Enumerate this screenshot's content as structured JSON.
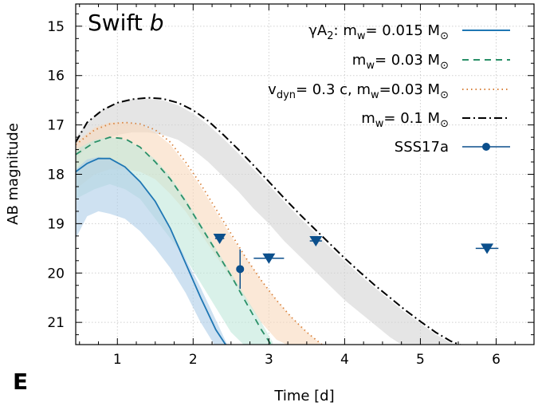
{
  "panel_label": "E",
  "chart_data": {
    "type": "line",
    "title": "Swift",
    "title_italic": "b",
    "xlabel": "Time [d]",
    "ylabel": "AB magnitude",
    "xlim": [
      0.45,
      6.5
    ],
    "ylim": [
      21.45,
      14.55
    ],
    "y_inverted": true,
    "xticks": [
      1,
      2,
      3,
      4,
      5,
      6
    ],
    "yticks": [
      15,
      16,
      17,
      18,
      19,
      20,
      21
    ],
    "grid": true,
    "legend_position": "top-right",
    "series": [
      {
        "name": "yA2: mw= 0.015 M⊙",
        "legend_label": "γA₂: m_w= 0.015 M_⊙",
        "style": "solid",
        "color": "#1f77b4",
        "band_color": "#aecde8",
        "x": [
          0.45,
          0.6,
          0.75,
          0.9,
          1.1,
          1.3,
          1.5,
          1.7,
          1.9,
          2.1,
          2.3,
          2.45
        ],
        "y": [
          17.95,
          17.78,
          17.68,
          17.68,
          17.85,
          18.15,
          18.55,
          19.1,
          19.8,
          20.5,
          21.15,
          21.5
        ],
        "band_upper": [
          17.9,
          17.7,
          17.65,
          17.7,
          17.85,
          18.15,
          18.55,
          19.1,
          19.7,
          20.3,
          20.95,
          21.45
        ],
        "band_lower": [
          19.3,
          18.85,
          18.75,
          18.8,
          18.9,
          19.15,
          19.5,
          19.9,
          20.4,
          21.0,
          21.5,
          21.5
        ]
      },
      {
        "name": "mw= 0.03 M⊙",
        "legend_label": "m_w= 0.03 M_⊙",
        "style": "dashed",
        "color": "#2a9068",
        "band_color": "#bfe7da",
        "x": [
          0.45,
          0.7,
          0.9,
          1.1,
          1.3,
          1.5,
          1.7,
          1.9,
          2.1,
          2.3,
          2.5,
          2.7,
          2.9,
          3.05
        ],
        "y": [
          17.6,
          17.35,
          17.25,
          17.28,
          17.45,
          17.75,
          18.1,
          18.55,
          19.05,
          19.55,
          20.05,
          20.6,
          21.15,
          21.5
        ],
        "band_upper": [
          17.5,
          17.3,
          17.25,
          17.3,
          17.45,
          17.7,
          18.05,
          18.5,
          19.0,
          19.5,
          20.0,
          20.5,
          21.0,
          21.4
        ],
        "band_lower": [
          18.5,
          18.3,
          18.2,
          18.3,
          18.5,
          18.9,
          19.3,
          19.7,
          20.2,
          20.7,
          21.2,
          21.5,
          21.5,
          21.5
        ]
      },
      {
        "name": "vdyn= 0.3 c, mw=0.03 M⊙",
        "legend_label": "v_dyn= 0.3 c, m_w=0.03 M_⊙",
        "style": "dotted",
        "color": "#d9823c",
        "band_color": "#f8d9bd",
        "x": [
          0.45,
          0.7,
          0.9,
          1.1,
          1.3,
          1.5,
          1.7,
          1.9,
          2.1,
          2.3,
          2.5,
          2.7,
          2.9,
          3.1,
          3.3,
          3.5,
          3.7,
          3.8
        ],
        "y": [
          17.4,
          17.1,
          16.98,
          16.95,
          16.98,
          17.1,
          17.35,
          17.75,
          18.2,
          18.7,
          19.2,
          19.7,
          20.15,
          20.55,
          20.9,
          21.2,
          21.45,
          21.5
        ],
        "band_upper": [
          17.35,
          17.05,
          16.95,
          16.95,
          17.0,
          17.15,
          17.4,
          17.8,
          18.25,
          18.75,
          19.25,
          19.7,
          20.15,
          20.55,
          20.9,
          21.2,
          21.45,
          21.5
        ],
        "band_lower": [
          18.3,
          18.0,
          17.9,
          17.9,
          17.95,
          18.1,
          18.4,
          18.75,
          19.2,
          19.65,
          20.1,
          20.55,
          21.0,
          21.35,
          21.5,
          21.5,
          21.5,
          21.5
        ]
      },
      {
        "name": "mw= 0.1 M⊙",
        "legend_label": "m_w= 0.1 M_⊙",
        "style": "dashdot",
        "color": "#000000",
        "band_color": "#d3d3d3",
        "x": [
          0.45,
          0.6,
          0.8,
          1.0,
          1.2,
          1.4,
          1.6,
          1.8,
          2.0,
          2.2,
          2.4,
          2.6,
          2.8,
          3.0,
          3.2,
          3.4,
          3.6,
          3.8,
          4.0,
          4.2,
          4.4,
          4.6,
          4.8,
          5.0,
          5.2,
          5.4,
          5.6
        ],
        "y": [
          17.35,
          16.95,
          16.7,
          16.55,
          16.48,
          16.45,
          16.47,
          16.55,
          16.7,
          16.92,
          17.2,
          17.5,
          17.82,
          18.15,
          18.48,
          18.8,
          19.1,
          19.4,
          19.7,
          19.98,
          20.25,
          20.5,
          20.75,
          20.98,
          21.2,
          21.38,
          21.5
        ],
        "band_upper": [
          17.25,
          16.95,
          16.7,
          16.55,
          16.48,
          16.47,
          16.5,
          16.6,
          16.77,
          17.0,
          17.28,
          17.58,
          17.9,
          18.22,
          18.55,
          18.87,
          19.17,
          19.47,
          19.76,
          20.04,
          20.3,
          20.55,
          20.8,
          21.02,
          21.24,
          21.42,
          21.5
        ],
        "band_lower": [
          17.7,
          17.45,
          17.3,
          17.2,
          17.15,
          17.15,
          17.2,
          17.3,
          17.5,
          17.75,
          18.05,
          18.35,
          18.7,
          19.0,
          19.35,
          19.65,
          19.95,
          20.25,
          20.55,
          20.8,
          21.05,
          21.3,
          21.5,
          21.5,
          21.5,
          21.5,
          21.5
        ]
      }
    ],
    "observations": {
      "name": "SSS17a",
      "color": "#0b4f8c",
      "detections": [
        {
          "x": 2.62,
          "y": 19.92,
          "xerr": 0.05,
          "yerr": 0.4
        }
      ],
      "upper_limits": [
        {
          "x": 2.35,
          "y": 19.3,
          "xerr": 0.06
        },
        {
          "x": 3.0,
          "y": 19.7,
          "xerr": 0.2
        },
        {
          "x": 3.62,
          "y": 19.35,
          "xerr": 0.08
        },
        {
          "x": 5.88,
          "y": 19.5,
          "xerr": 0.15
        }
      ]
    }
  }
}
